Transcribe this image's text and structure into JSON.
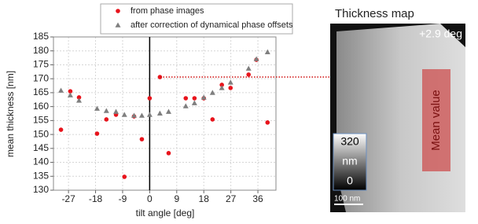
{
  "chart_data": {
    "type": "scatter",
    "x_label": "tilt angle [deg]",
    "y_label": "mean thickness [nm]",
    "xlim": [
      -32,
      42
    ],
    "ylim": [
      130,
      185
    ],
    "xticks": [
      -27,
      -18,
      -9,
      0,
      9,
      18,
      27,
      36
    ],
    "yticks": [
      130,
      135,
      140,
      145,
      150,
      155,
      160,
      165,
      170,
      175,
      180,
      185
    ],
    "grid": true,
    "legend": "top",
    "vlines": [
      0
    ],
    "series": [
      {
        "name": "from phase images",
        "color": "#e8141c",
        "marker": "circle",
        "x": [
          -29.5,
          -26.4,
          -23.5,
          -17.5,
          -14.4,
          -11.2,
          -8.4,
          -5.2,
          -2.6,
          0,
          3.4,
          6.3,
          12,
          14.9,
          18,
          20.9,
          24,
          26.9,
          32.9,
          35.5,
          39.2
        ],
        "values": [
          151.7,
          165.5,
          163.3,
          150.3,
          155.4,
          157.1,
          134.8,
          156.5,
          148.3,
          163,
          170.6,
          143.3,
          163,
          163,
          163,
          155.4,
          167.8,
          166.7,
          171.5,
          176.8,
          154.3
        ]
      },
      {
        "name": "after correction of dynamical phase offsets",
        "color": "#7f7f7f",
        "marker": "triangle",
        "x": [
          -29.5,
          -26.4,
          -23.5,
          -17.5,
          -14.4,
          -11.2,
          -8.4,
          -5.2,
          -2.6,
          0,
          3.4,
          6.3,
          12,
          14.9,
          18,
          20.9,
          24,
          26.9,
          32.9,
          35.5,
          39.2
        ],
        "values": [
          165.8,
          164.1,
          162.2,
          159.3,
          158.5,
          158.2,
          157.1,
          156.8,
          156.8,
          157.1,
          157.6,
          158.2,
          160.2,
          161.3,
          163.3,
          165,
          166.7,
          168.7,
          173.7,
          177.1,
          179.6
        ]
      }
    ]
  },
  "image_panel": {
    "title": "Thickness map",
    "tilt_label": "+2.9 deg",
    "colorbar_max": "320",
    "colorbar_unit": "nm",
    "colorbar_min": "0",
    "scale_bar": "100 nm",
    "region_label": "Mean value"
  }
}
